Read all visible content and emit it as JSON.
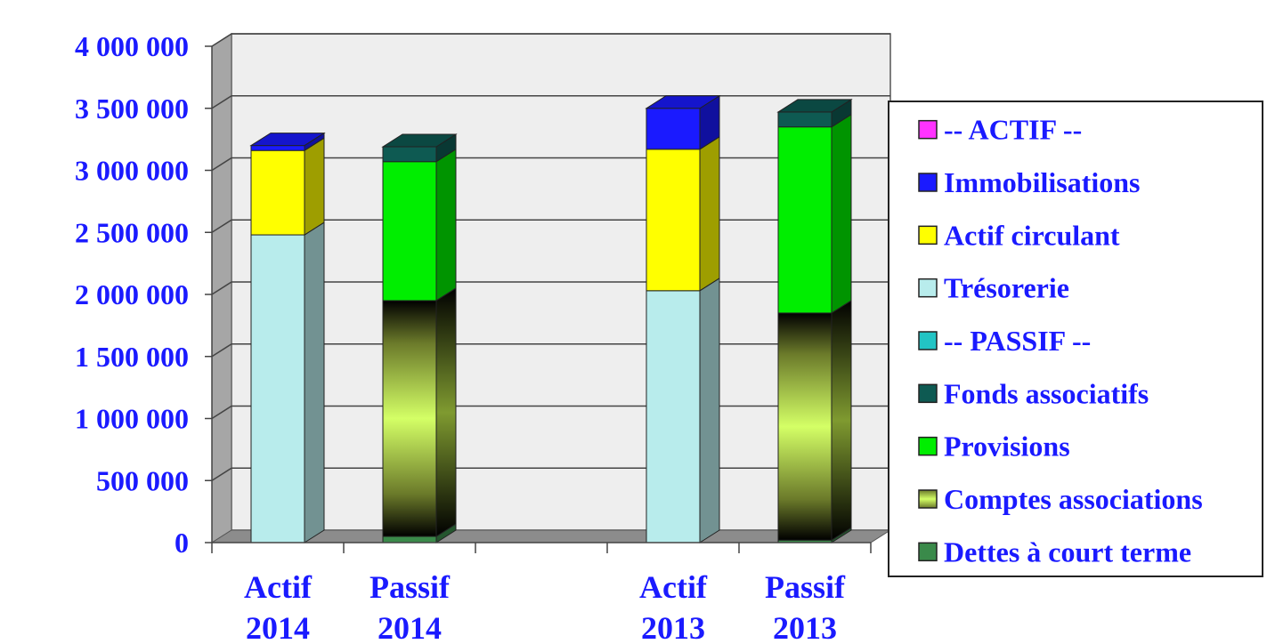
{
  "chart_data": {
    "type": "bar",
    "stacked": true,
    "three_d": true,
    "categories": [
      {
        "line1": "Actif",
        "line2": "2014"
      },
      {
        "line1": "Passif",
        "line2": "2014"
      },
      {
        "line1": "",
        "line2": ""
      },
      {
        "line1": "Actif",
        "line2": "2013"
      },
      {
        "line1": "Passif",
        "line2": "2013"
      }
    ],
    "y_ticks": [
      "0",
      "500 000",
      "1 000 000",
      "1 500 000",
      "2 000 000",
      "2 500 000",
      "3 000 000",
      "3 500 000",
      "4 000 000"
    ],
    "ylim": [
      0,
      4000000
    ],
    "grid": true,
    "legend_position": "right",
    "series": [
      {
        "name": "-- ACTIF --",
        "color": "#ff33ff",
        "values": [
          0,
          0,
          0,
          0,
          0
        ]
      },
      {
        "name": "Immobilisations",
        "color": "#1a1aff",
        "values": [
          40000,
          0,
          0,
          330000,
          0
        ]
      },
      {
        "name": "Actif circulant",
        "color": "#ffff00",
        "values": [
          680000,
          0,
          0,
          1140000,
          0
        ]
      },
      {
        "name": "Trésorerie",
        "color": "#b8ecec",
        "values": [
          2480000,
          0,
          0,
          2030000,
          0
        ]
      },
      {
        "name": "-- PASSIF --",
        "color": "#22c4c4",
        "values": [
          0,
          0,
          0,
          0,
          0
        ]
      },
      {
        "name": "Fonds associatifs",
        "color": "#0e5a52",
        "values": [
          0,
          120000,
          0,
          0,
          120000
        ]
      },
      {
        "name": "Provisions",
        "color": "#00ee00",
        "values": [
          0,
          1120000,
          0,
          0,
          1500000
        ]
      },
      {
        "name": "Comptes associations",
        "color": "#ccff66",
        "values": [
          0,
          1900000,
          0,
          0,
          1830000
        ]
      },
      {
        "name": "Dettes à court terme",
        "color": "#3a8a4a",
        "values": [
          0,
          50000,
          0,
          0,
          20000
        ]
      }
    ],
    "stack_order": [
      8,
      7,
      6,
      5,
      4,
      3,
      2,
      1,
      0
    ]
  }
}
